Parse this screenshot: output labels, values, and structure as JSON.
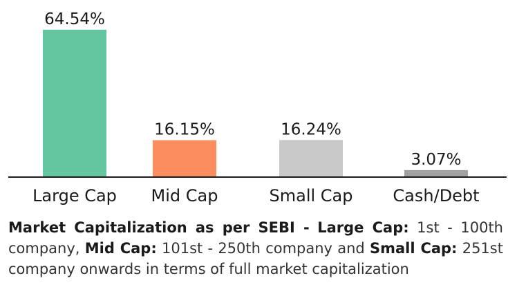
{
  "chart_data": {
    "type": "bar",
    "categories": [
      "Large Cap",
      "Mid Cap",
      "Small Cap",
      "Cash/Debt"
    ],
    "values": [
      64.54,
      16.15,
      16.24,
      3.07
    ],
    "value_labels": [
      "64.54%",
      "16.15%",
      "16.24%",
      "3.07%"
    ],
    "colors": [
      "#63c6a0",
      "#fc8d5f",
      "#c9c9c9",
      "#a3a3a3"
    ],
    "ylim": [
      0,
      64.54
    ],
    "grid": false,
    "legend": "none"
  },
  "footnote": {
    "heading": "Market Capitalization as per SEBI -",
    "large_label": "Large Cap:",
    "large_text": "1st - 100th company,",
    "mid_label": "Mid Cap:",
    "mid_text": "101st - 250th company and",
    "small_label": "Small Cap:",
    "small_text": "251st company onwards in terms of full market capitalization"
  }
}
